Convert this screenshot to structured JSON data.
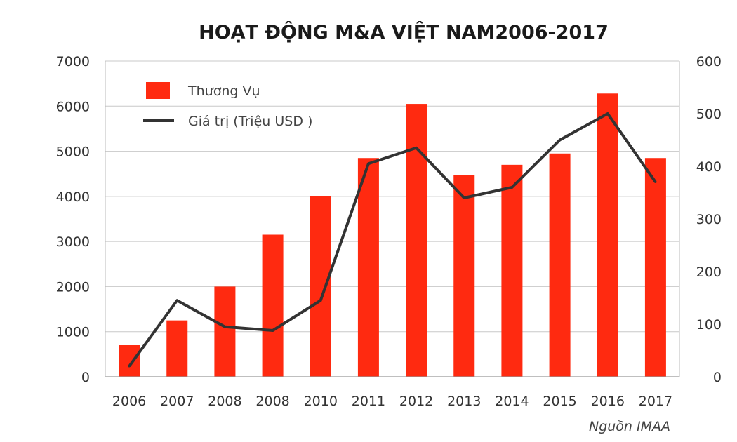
{
  "chart_data": {
    "type": "bar",
    "title": "HOẠT ĐỘNG M&A VIỆT NAM2006-2017",
    "categories": [
      "2006",
      "2007",
      "2008",
      "2008",
      "2010",
      "2011",
      "2012",
      "2013",
      "2014",
      "2015",
      "2016",
      "2017"
    ],
    "series": [
      {
        "name": "Thương Vụ",
        "type": "bar",
        "axis": "left",
        "color": "#ff2a10",
        "values": [
          700,
          1250,
          2000,
          3150,
          4000,
          4850,
          6050,
          4480,
          4700,
          4950,
          6280,
          4850
        ]
      },
      {
        "name": "Giá trị (Triệu USD )",
        "type": "line",
        "axis": "right",
        "color": "#333333",
        "values": [
          20,
          145,
          95,
          88,
          145,
          405,
          435,
          340,
          360,
          450,
          500,
          370
        ]
      }
    ],
    "y_left": {
      "min": 0,
      "max": 7000,
      "ticks": [
        0,
        1000,
        2000,
        3000,
        4000,
        5000,
        6000,
        7000
      ]
    },
    "y_right": {
      "min": 0,
      "max": 600,
      "ticks": [
        0,
        100,
        200,
        300,
        400,
        500,
        600
      ]
    },
    "grid": true,
    "legend_position": "top-left",
    "source": "Nguồn IMAA"
  }
}
